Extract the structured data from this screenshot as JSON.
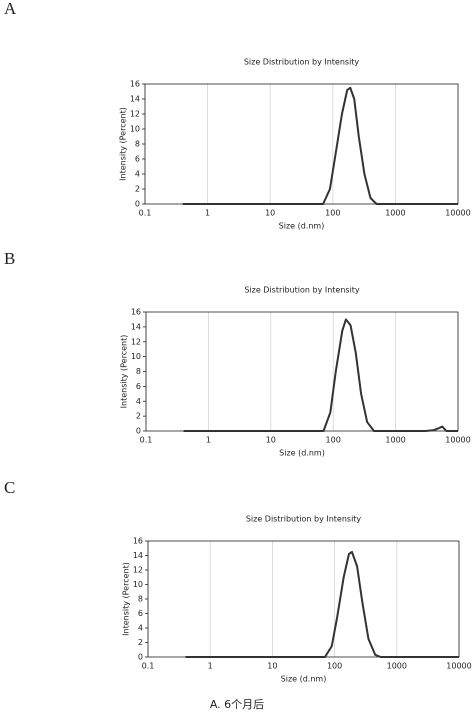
{
  "caption": "A. 6个月后",
  "chart_data": [
    {
      "type": "line",
      "label": "A",
      "title": "Size Distribution by Intensity",
      "xlabel": "Size (d.nm)",
      "ylabel": "Intensity (Percent)",
      "logx": true,
      "grid": true,
      "xlim": [
        0.1,
        10000
      ],
      "xticks": [
        0.1,
        1,
        10,
        100,
        1000,
        10000
      ],
      "ylim": [
        0,
        16
      ],
      "yticks": [
        0,
        2,
        4,
        6,
        8,
        10,
        12,
        14,
        16
      ],
      "x": [
        0.4,
        70,
        90,
        110,
        140,
        170,
        190,
        220,
        260,
        320,
        400,
        500,
        10000
      ],
      "series": [
        {
          "color": "#333333",
          "values": [
            0,
            0,
            2,
            6.5,
            12,
            15.2,
            15.5,
            14,
            9,
            4,
            0.8,
            0,
            0
          ]
        }
      ]
    },
    {
      "type": "line",
      "label": "B",
      "title": "Size Distribution by Intensity",
      "xlabel": "Size (d.nm)",
      "ylabel": "Intensity (Percent)",
      "logx": true,
      "grid": true,
      "xlim": [
        0.1,
        10000
      ],
      "xticks": [
        0.1,
        1,
        10,
        100,
        1000,
        10000
      ],
      "ylim": [
        0,
        16
      ],
      "yticks": [
        0,
        2,
        4,
        6,
        8,
        10,
        12,
        14,
        16
      ],
      "x": [
        0.4,
        70,
        90,
        110,
        140,
        160,
        190,
        230,
        280,
        350,
        450,
        3000,
        4000,
        5000,
        5600,
        6500,
        10000
      ],
      "series": [
        {
          "color": "#333333",
          "values": [
            0,
            0,
            2.5,
            8,
            13.5,
            15,
            14.2,
            10.5,
            5,
            1.2,
            0,
            0,
            0.1,
            0.4,
            0.6,
            0,
            0
          ]
        }
      ]
    },
    {
      "type": "line",
      "label": "C",
      "title": "Size Distribution by Intensity",
      "xlabel": "Size (d.nm)",
      "ylabel": "Intensity (Percent)",
      "logx": true,
      "grid": true,
      "xlim": [
        0.1,
        10000
      ],
      "xticks": [
        0.1,
        1,
        10,
        100,
        1000,
        10000
      ],
      "ylim": [
        0,
        16
      ],
      "yticks": [
        0,
        2,
        4,
        6,
        8,
        10,
        12,
        14,
        16
      ],
      "x": [
        0.4,
        70,
        90,
        110,
        140,
        170,
        190,
        230,
        280,
        350,
        450,
        550,
        10000
      ],
      "series": [
        {
          "color": "#333333",
          "values": [
            0,
            0,
            1.5,
            5.5,
            11,
            14.2,
            14.5,
            12.5,
            7.5,
            2.5,
            0.3,
            0,
            0
          ]
        }
      ]
    }
  ]
}
